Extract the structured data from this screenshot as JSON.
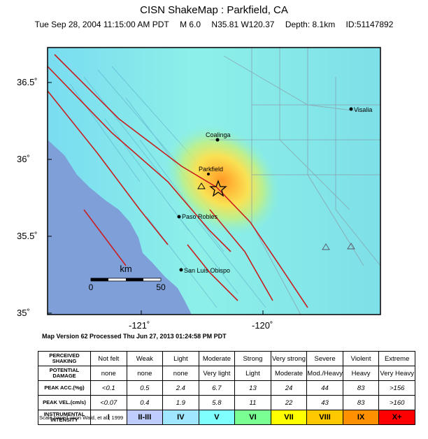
{
  "header": {
    "title": "CISN ShakeMap : Parkfield, CA",
    "datetime": "Tue Sep 28, 2004 11:15:00 AM PDT",
    "magnitude": "M 6.0",
    "location": "N35.81 W120.37",
    "depth": "Depth: 8.1km",
    "event_id": "ID:51147892"
  },
  "map": {
    "lat_labels": [
      "36.5˚",
      "36˚",
      "35.5˚",
      "35˚"
    ],
    "lon_labels": [
      "-121˚",
      "-120˚"
    ],
    "cities": [
      "Coalinga",
      "Visalia",
      "Parkfield",
      "Paso Robles",
      "San Luis Obispo"
    ],
    "scale_bar": {
      "unit": "km",
      "start": "0",
      "end": "50"
    },
    "epicenter": {
      "lat": 35.81,
      "lon": -120.37
    },
    "colors": {
      "water": "#7f9fd8",
      "strong_shaking": "#ffd24d",
      "very_strong": "#ff9a26",
      "fault": "#c81e1e"
    }
  },
  "version_text": "Map Version 62 Processed Thu Jun 27, 2013 01:24:58 PM PDT",
  "legend": {
    "shaking_label": "PERCEIVED SHAKING",
    "damage_label": "POTENTIAL DAMAGE",
    "acc_label": "PEAK ACC.(%g)",
    "vel_label": "PEAK VEL.(cm/s)",
    "intensity_label": "INSTRUMENTAL INTENSITY",
    "shaking": [
      "Not felt",
      "Weak",
      "Light",
      "Moderate",
      "Strong",
      "Very strong",
      "Severe",
      "Violent",
      "Extreme"
    ],
    "damage": [
      "none",
      "none",
      "none",
      "Very light",
      "Light",
      "Moderate",
      "Mod./Heavy",
      "Heavy",
      "Very Heavy"
    ],
    "acc": [
      "<0.1",
      "0.5",
      "2.4",
      "6.7",
      "13",
      "24",
      "44",
      "83",
      ">156"
    ],
    "vel": [
      "<0.07",
      "0.4",
      "1.9",
      "5.8",
      "11",
      "22",
      "43",
      "83",
      ">160"
    ],
    "intensity": [
      "I",
      "II-III",
      "IV",
      "V",
      "VI",
      "VII",
      "VIII",
      "IX",
      "X+"
    ],
    "intensity_colors": [
      "#ffffff",
      "#bfccff",
      "#a0e6ff",
      "#80ffff",
      "#7aff93",
      "#ffff00",
      "#ffc800",
      "#ff9100",
      "#ff0000"
    ]
  },
  "scale_note": "Scale based upon Wald, et al.; 1999"
}
